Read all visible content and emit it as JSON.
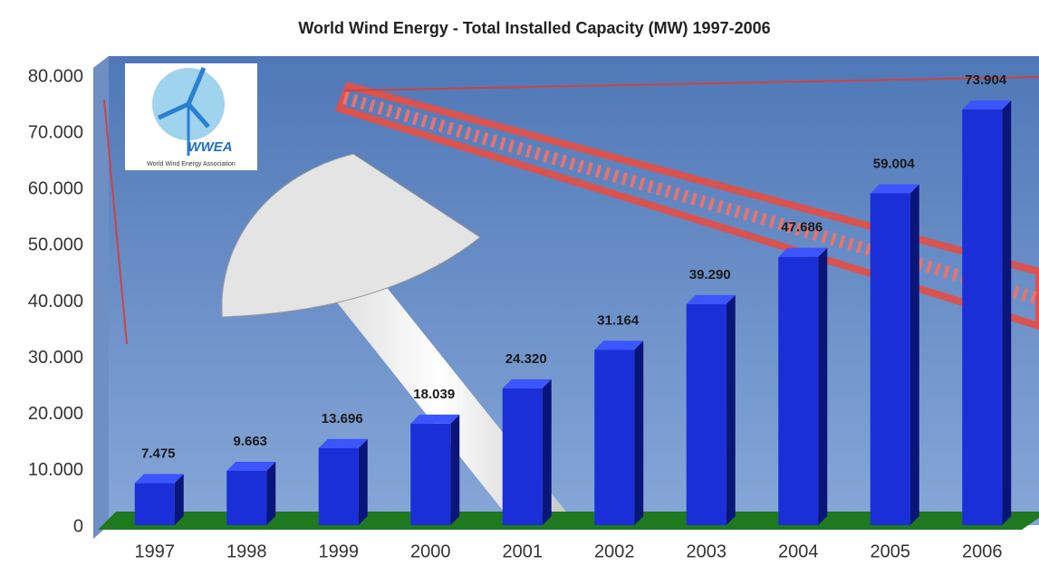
{
  "chart_data": {
    "type": "bar",
    "title": "World Wind Energy - Total Installed Capacity (MW) 1997-2006",
    "categories": [
      "1997",
      "1998",
      "1999",
      "2000",
      "2001",
      "2002",
      "2003",
      "2004",
      "2005",
      "2006"
    ],
    "values": [
      7475,
      9663,
      13696,
      18039,
      24320,
      31164,
      39290,
      47686,
      59004,
      73904
    ],
    "value_labels": [
      "7.475",
      "9.663",
      "13.696",
      "18.039",
      "24.320",
      "31.164",
      "39.290",
      "47.686",
      "59.004",
      "73.904"
    ],
    "color": "#1b2fd8",
    "ylim": [
      0,
      80000
    ],
    "yticks": [
      0,
      {
        "value": 10000,
        "label": "10.000"
      },
      {
        "value": 20000,
        "label": "20.000"
      },
      {
        "value": 30000,
        "label": "30.000"
      },
      {
        "value": 40000,
        "label": "40.000"
      },
      {
        "value": 50000,
        "label": "50.000"
      },
      {
        "value": 60000,
        "label": "60.000"
      },
      {
        "value": 70000,
        "label": "70.000"
      },
      {
        "value": 80000,
        "label": "80.000"
      }
    ],
    "grid": false,
    "logo": {
      "title": "WWEA",
      "subtitle": "World Wind Energy Association"
    }
  }
}
